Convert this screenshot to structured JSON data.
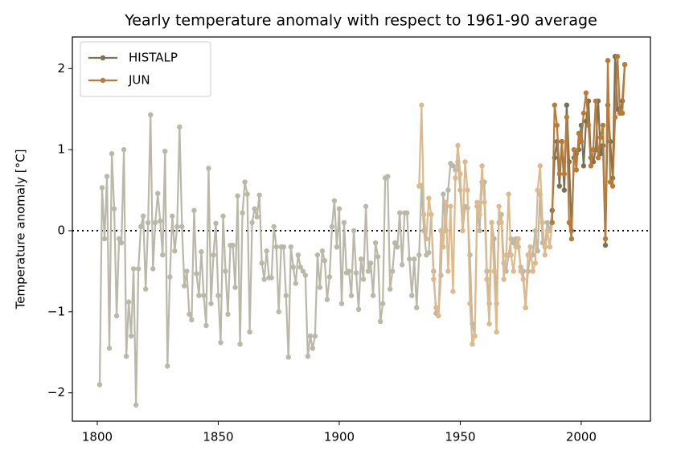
{
  "chart_data": {
    "type": "line",
    "title": "Yearly temperature anomaly with respect to 1961-90 average",
    "ylabel": "Temperature anomaly [°C]",
    "xlim": [
      1789.7,
      2028.6
    ],
    "ylim": [
      -2.35,
      2.39
    ],
    "xticks": [
      1800,
      1850,
      1900,
      1950,
      2000
    ],
    "yticks": [
      {
        "value": -2,
        "label": "−2"
      },
      {
        "value": -1,
        "label": "−1"
      },
      0,
      1,
      2
    ],
    "reference_line": 0,
    "emphasis_from": 1988,
    "legend": "upper left",
    "series": [
      {
        "name": "HISTALP",
        "color": "#77735a",
        "faded_color": "#b9b8a9",
        "x": [
          1801,
          1802,
          1803,
          1804,
          1805,
          1806,
          1807,
          1808,
          1809,
          1810,
          1811,
          1812,
          1813,
          1814,
          1815,
          1816,
          1817,
          1818,
          1819,
          1820,
          1821,
          1822,
          1823,
          1824,
          1825,
          1826,
          1827,
          1828,
          1829,
          1830,
          1831,
          1832,
          1833,
          1834,
          1835,
          1836,
          1837,
          1838,
          1839,
          1840,
          1841,
          1842,
          1843,
          1844,
          1845,
          1846,
          1847,
          1848,
          1849,
          1850,
          1851,
          1852,
          1853,
          1854,
          1855,
          1856,
          1857,
          1858,
          1859,
          1860,
          1861,
          1862,
          1863,
          1864,
          1865,
          1866,
          1867,
          1868,
          1869,
          1870,
          1871,
          1872,
          1873,
          1874,
          1875,
          1876,
          1877,
          1878,
          1879,
          1880,
          1881,
          1882,
          1883,
          1884,
          1885,
          1886,
          1887,
          1888,
          1889,
          1890,
          1891,
          1892,
          1893,
          1894,
          1895,
          1896,
          1897,
          1898,
          1899,
          1900,
          1901,
          1902,
          1903,
          1904,
          1905,
          1906,
          1907,
          1908,
          1909,
          1910,
          1911,
          1912,
          1913,
          1914,
          1915,
          1916,
          1917,
          1918,
          1919,
          1920,
          1921,
          1922,
          1923,
          1924,
          1925,
          1926,
          1927,
          1928,
          1929,
          1930,
          1931,
          1932,
          1933,
          1934,
          1935,
          1936,
          1937,
          1938,
          1939,
          1940,
          1941,
          1942,
          1943,
          1944,
          1945,
          1946,
          1947,
          1948,
          1949,
          1950,
          1951,
          1952,
          1953,
          1954,
          1955,
          1956,
          1957,
          1958,
          1959,
          1960,
          1961,
          1962,
          1963,
          1964,
          1965,
          1966,
          1967,
          1968,
          1969,
          1970,
          1971,
          1972,
          1973,
          1974,
          1975,
          1976,
          1977,
          1978,
          1979,
          1980,
          1981,
          1982,
          1983,
          1984,
          1985,
          1986,
          1987,
          1988,
          1989,
          1990,
          1991,
          1992,
          1993,
          1994,
          1995,
          1996,
          1997,
          1998,
          1999,
          2000,
          2001,
          2002,
          2003,
          2004,
          2005,
          2006,
          2007,
          2008,
          2009,
          2010,
          2011,
          2012,
          2013,
          2014,
          2015,
          2016,
          2017,
          2018
        ],
        "values": [
          -1.9,
          0.53,
          -0.1,
          0.67,
          -1.45,
          0.95,
          0.27,
          -1.05,
          -0.1,
          -0.15,
          1.0,
          -1.55,
          -0.88,
          -1.3,
          -0.47,
          -2.15,
          -0.47,
          0.05,
          0.18,
          -0.72,
          0.1,
          1.43,
          -0.47,
          0.1,
          0.46,
          0.12,
          -0.3,
          0.98,
          -1.67,
          -0.57,
          0.18,
          -0.25,
          0.05,
          1.28,
          0.05,
          -0.68,
          -0.5,
          -1.03,
          -1.1,
          0.25,
          -0.53,
          -0.8,
          -0.26,
          -0.8,
          -1.17,
          0.77,
          -0.9,
          -0.3,
          0.09,
          -0.8,
          -1.38,
          0.18,
          -0.5,
          -1.03,
          -0.18,
          -0.18,
          -0.7,
          0.43,
          -1.4,
          0.22,
          0.6,
          0.45,
          -1.25,
          0.1,
          0.27,
          0.17,
          0.44,
          -0.4,
          -0.6,
          -0.25,
          -0.58,
          -0.58,
          0.05,
          -0.2,
          -1.0,
          -0.2,
          -0.2,
          -0.8,
          -1.56,
          -0.2,
          -0.45,
          -0.65,
          -0.3,
          -0.45,
          -0.5,
          -0.55,
          -1.55,
          -1.3,
          -1.45,
          -1.3,
          -0.3,
          -0.7,
          -0.25,
          -0.37,
          -0.85,
          -0.57,
          0.05,
          0.37,
          -0.2,
          0.27,
          -0.9,
          0.1,
          -0.52,
          -0.5,
          -0.8,
          0.0,
          -0.52,
          -0.97,
          -0.35,
          -0.6,
          0.3,
          -0.5,
          -0.4,
          -0.8,
          -0.15,
          -0.32,
          -1.12,
          -0.9,
          0.65,
          0.67,
          -0.72,
          -0.5,
          -0.15,
          -0.2,
          0.22,
          -0.42,
          0.22,
          0.22,
          -0.35,
          -0.8,
          -0.35,
          -0.95,
          -0.3,
          0.56,
          0.0,
          -0.3,
          -0.27,
          0.2,
          -0.5,
          -1.02,
          -1.05,
          -0.55,
          0.45,
          0.0,
          0.5,
          0.83,
          0.8,
          0.75,
          0.85,
          0.5,
          0.0,
          0.3,
          0.28,
          -0.3,
          -1.15,
          -1.3,
          0.3,
          0.0,
          0.6,
          0.6,
          -0.5,
          -0.9,
          0.1,
          -0.1,
          -0.9,
          0.1,
          0.2,
          -0.4,
          -0.5,
          -0.3,
          -0.1,
          -0.15,
          -0.1,
          -0.2,
          -0.45,
          -0.5,
          -0.95,
          -0.5,
          -0.3,
          -0.3,
          0.0,
          -0.25,
          0.45,
          -0.15,
          -0.2,
          0.1,
          0.0,
          0.25,
          0.9,
          1.1,
          0.55,
          1.1,
          0.5,
          1.55,
          0.85,
          0.0,
          0.9,
          0.95,
          1.0,
          1.3,
          0.8,
          1.35,
          1.6,
          0.9,
          0.85,
          1.0,
          1.6,
          0.95,
          1.05,
          -0.18,
          1.55,
          1.1,
          0.65,
          2.15,
          1.5,
          1.45,
          1.6,
          2.05
        ]
      },
      {
        "name": "JUN",
        "color": "#bb7a35",
        "faded_color": "#ddba8c",
        "x": [
          1933,
          1934,
          1935,
          1936,
          1937,
          1938,
          1939,
          1940,
          1941,
          1942,
          1943,
          1944,
          1945,
          1946,
          1947,
          1948,
          1949,
          1950,
          1951,
          1952,
          1953,
          1954,
          1955,
          1956,
          1957,
          1958,
          1959,
          1960,
          1961,
          1962,
          1963,
          1964,
          1965,
          1966,
          1967,
          1968,
          1969,
          1970,
          1971,
          1972,
          1973,
          1974,
          1975,
          1976,
          1977,
          1978,
          1979,
          1980,
          1981,
          1982,
          1983,
          1984,
          1985,
          1986,
          1987,
          1988,
          1989,
          1990,
          1991,
          1992,
          1993,
          1994,
          1995,
          1996,
          1997,
          1998,
          1999,
          2000,
          2001,
          2002,
          2003,
          2004,
          2005,
          2006,
          2007,
          2008,
          2009,
          2010,
          2011,
          2012,
          2013,
          2014,
          2015,
          2016,
          2017,
          2018
        ],
        "values": [
          0.55,
          1.55,
          0.2,
          -0.1,
          0.4,
          0.2,
          -0.6,
          -0.95,
          -1.05,
          0.0,
          -0.2,
          0.35,
          -0.5,
          0.3,
          -0.75,
          0.65,
          1.05,
          0.7,
          0.0,
          0.85,
          0.5,
          -0.9,
          -1.4,
          -1.3,
          0.35,
          0.2,
          0.8,
          0.35,
          -0.6,
          -1.15,
          0.1,
          -0.5,
          -1.25,
          0.3,
          0.1,
          -0.6,
          -0.3,
          0.45,
          -0.3,
          -0.5,
          -0.2,
          -0.1,
          -0.5,
          -0.6,
          -0.95,
          -0.3,
          -0.2,
          -0.5,
          -0.4,
          0.5,
          0.8,
          0.1,
          -0.3,
          0.0,
          -0.2,
          0.1,
          1.55,
          1.3,
          0.7,
          1.1,
          0.7,
          1.4,
          0.1,
          -0.1,
          1.0,
          0.75,
          1.2,
          1.1,
          1.45,
          1.7,
          1.3,
          0.8,
          1.0,
          1.6,
          0.9,
          1.15,
          1.3,
          -0.1,
          2.1,
          0.6,
          0.55,
          1.4,
          2.15,
          1.45,
          1.45,
          2.05
        ]
      }
    ]
  }
}
